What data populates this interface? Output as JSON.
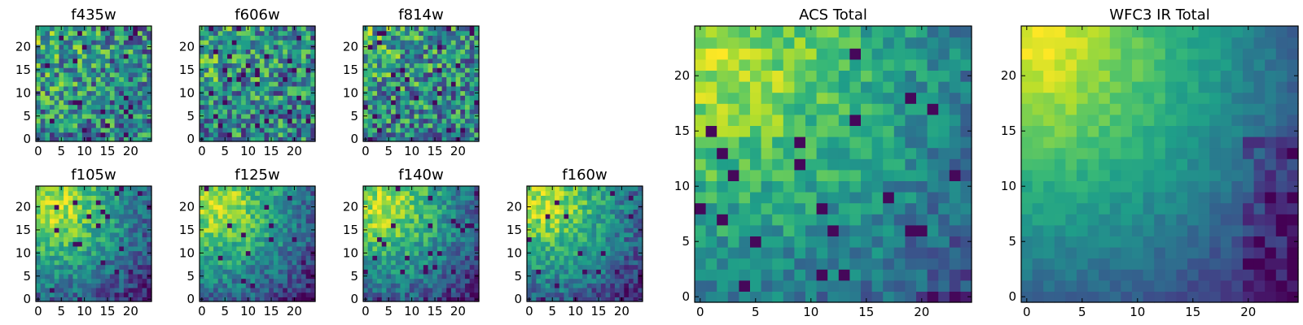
{
  "figure": {
    "panels": [
      {
        "title": "f435w",
        "xticks": [
          "0",
          "5",
          "10",
          "15",
          "20"
        ],
        "yticks": [
          "0",
          "5",
          "10",
          "15",
          "20"
        ],
        "seed": 11,
        "style": "noise"
      },
      {
        "title": "f606w",
        "xticks": [
          "0",
          "5",
          "10",
          "15",
          "20"
        ],
        "yticks": [
          "0",
          "5",
          "10",
          "15",
          "20"
        ],
        "seed": 23,
        "style": "noise"
      },
      {
        "title": "f814w",
        "xticks": [
          "0",
          "5",
          "10",
          "15",
          "20"
        ],
        "yticks": [
          "0",
          "5",
          "10",
          "15",
          "20"
        ],
        "seed": 37,
        "style": "noise"
      },
      {
        "title": "f105w",
        "xticks": [
          "0",
          "5",
          "10",
          "15",
          "20"
        ],
        "yticks": [
          "0",
          "5",
          "10",
          "15",
          "20"
        ],
        "seed": 41,
        "style": "smooth"
      },
      {
        "title": "f125w",
        "xticks": [
          "0",
          "5",
          "10",
          "15",
          "20"
        ],
        "yticks": [
          "0",
          "5",
          "10",
          "15",
          "20"
        ],
        "seed": 53,
        "style": "smooth"
      },
      {
        "title": "f140w",
        "xticks": [
          "0",
          "5",
          "10",
          "15",
          "20"
        ],
        "yticks": [
          "0",
          "5",
          "10",
          "15",
          "20"
        ],
        "seed": 67,
        "style": "smooth"
      },
      {
        "title": "f160w",
        "xticks": [
          "0",
          "5",
          "10",
          "15",
          "20"
        ],
        "yticks": [
          "0",
          "5",
          "10",
          "15",
          "20"
        ],
        "seed": 79,
        "style": "smooth"
      },
      {
        "title": "ACS Total",
        "xticks": [
          "0",
          "5",
          "10",
          "15",
          "20"
        ],
        "yticks": [
          "0",
          "5",
          "10",
          "15",
          "20"
        ],
        "seed": 83,
        "style": "total"
      },
      {
        "title": "WFC3 IR Total",
        "xticks": [
          "0",
          "5",
          "10",
          "15",
          "20"
        ],
        "yticks": [
          "0",
          "5",
          "10",
          "15",
          "20"
        ],
        "seed": 97,
        "style": "ir"
      }
    ]
  },
  "chart_data": [
    {
      "type": "heatmap",
      "title": "f435w",
      "grid_size": [
        25,
        25
      ],
      "xlim": [
        0,
        24
      ],
      "ylim": [
        0,
        24
      ],
      "colormap": "viridis"
    },
    {
      "type": "heatmap",
      "title": "f606w",
      "grid_size": [
        25,
        25
      ],
      "xlim": [
        0,
        24
      ],
      "ylim": [
        0,
        24
      ],
      "colormap": "viridis"
    },
    {
      "type": "heatmap",
      "title": "f814w",
      "grid_size": [
        25,
        25
      ],
      "xlim": [
        0,
        24
      ],
      "ylim": [
        0,
        24
      ],
      "colormap": "viridis"
    },
    {
      "type": "heatmap",
      "title": "f105w",
      "grid_size": [
        25,
        25
      ],
      "xlim": [
        0,
        24
      ],
      "ylim": [
        0,
        24
      ],
      "colormap": "viridis"
    },
    {
      "type": "heatmap",
      "title": "f125w",
      "grid_size": [
        25,
        25
      ],
      "xlim": [
        0,
        24
      ],
      "ylim": [
        0,
        24
      ],
      "colormap": "viridis"
    },
    {
      "type": "heatmap",
      "title": "f140w",
      "grid_size": [
        25,
        25
      ],
      "xlim": [
        0,
        24
      ],
      "ylim": [
        0,
        24
      ],
      "colormap": "viridis"
    },
    {
      "type": "heatmap",
      "title": "f160w",
      "grid_size": [
        25,
        25
      ],
      "xlim": [
        0,
        24
      ],
      "ylim": [
        0,
        24
      ],
      "colormap": "viridis"
    },
    {
      "type": "heatmap",
      "title": "ACS Total",
      "grid_size": [
        25,
        25
      ],
      "xlim": [
        0,
        24
      ],
      "ylim": [
        0,
        24
      ],
      "colormap": "viridis"
    },
    {
      "type": "heatmap",
      "title": "WFC3 IR Total",
      "grid_size": [
        25,
        25
      ],
      "xlim": [
        0,
        24
      ],
      "ylim": [
        0,
        24
      ],
      "colormap": "viridis"
    }
  ]
}
